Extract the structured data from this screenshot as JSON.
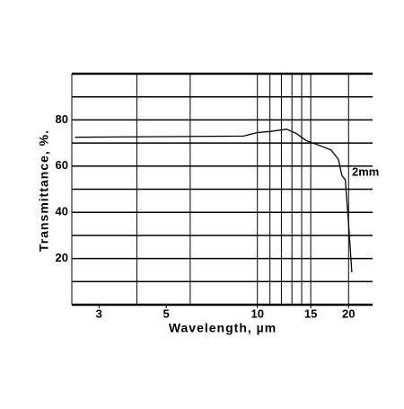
{
  "chart_data": {
    "type": "line",
    "xlabel": "Wavelength, µm",
    "ylabel": "Transmittance, %.",
    "annotation": "2mm",
    "xscale": "log",
    "xlim": [
      2.44,
      24
    ],
    "ylim": [
      0,
      100
    ],
    "xticks": [
      3,
      5,
      10,
      15,
      20
    ],
    "yticks": [
      20,
      40,
      60,
      80
    ],
    "xgrid": [
      4,
      6,
      10,
      11,
      12,
      13,
      14,
      15,
      20
    ],
    "ygrid": [
      10,
      20,
      30,
      40,
      50,
      60,
      70,
      80,
      90,
      100
    ],
    "grid": true,
    "series": [
      {
        "color": "#000000",
        "x": [
          2.5,
          9,
          10,
          11,
          12.5,
          13.5,
          14.5,
          16,
          17.5,
          18.5,
          19,
          19.5,
          20,
          20.5
        ],
        "values": [
          72.5,
          73,
          74.5,
          75,
          76,
          74,
          71,
          69,
          67,
          63,
          56,
          54,
          35,
          14
        ]
      }
    ]
  }
}
